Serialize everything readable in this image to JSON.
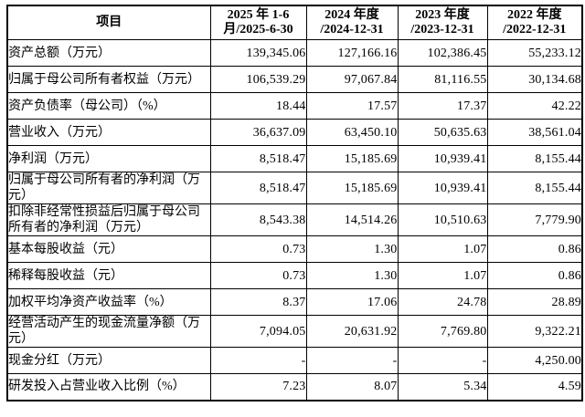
{
  "page": {
    "background_color": "#ffffff",
    "border_color": "#000000",
    "text_color": "#000000"
  },
  "table": {
    "header": {
      "item_label": "项目",
      "periods": [
        {
          "line1": "2025 年 1-6",
          "line2": "月/2025-6-30"
        },
        {
          "line1": "2024 年度",
          "line2": "/2024-12-31"
        },
        {
          "line1": "2023 年度",
          "line2": "/2023-12-31"
        },
        {
          "line1": "2022 年度",
          "line2": "/2022-12-31"
        }
      ]
    },
    "rows": [
      {
        "label": "资产总额（万元）",
        "values": [
          "139,345.06",
          "127,166.16",
          "102,386.45",
          "55,233.12"
        ]
      },
      {
        "label": "归属于母公司所有者权益（万元）",
        "values": [
          "106,539.29",
          "97,067.84",
          "81,116.55",
          "30,134.68"
        ]
      },
      {
        "label": "资产负债率（母公司）（%）",
        "values": [
          "18.44",
          "17.57",
          "17.37",
          "42.22"
        ]
      },
      {
        "label": "营业收入（万元）",
        "values": [
          "36,637.09",
          "63,450.10",
          "50,635.63",
          "38,561.04"
        ]
      },
      {
        "label": "净利润（万元）",
        "values": [
          "8,518.47",
          "15,185.69",
          "10,939.41",
          "8,155.44"
        ]
      },
      {
        "label": "归属于母公司所有者的净利润（万元）",
        "values": [
          "8,518.47",
          "15,185.69",
          "10,939.41",
          "8,155.44"
        ]
      },
      {
        "label": "扣除非经常性损益后归属于母公司所有者的净利润（万元）",
        "values": [
          "8,543.38",
          "14,514.26",
          "10,510.63",
          "7,779.90"
        ]
      },
      {
        "label": "基本每股收益（元）",
        "values": [
          "0.73",
          "1.30",
          "1.07",
          "0.86"
        ]
      },
      {
        "label": "稀释每股收益（元）",
        "values": [
          "0.73",
          "1.30",
          "1.07",
          "0.86"
        ]
      },
      {
        "label": "加权平均净资产收益率（%）",
        "values": [
          "8.37",
          "17.06",
          "24.78",
          "28.89"
        ]
      },
      {
        "label": "经营活动产生的现金流量净额（万元）",
        "values": [
          "7,094.05",
          "20,631.92",
          "7,769.80",
          "9,322.21"
        ]
      },
      {
        "label": "现金分红（万元）",
        "values": [
          "-",
          "-",
          "-",
          "4,250.00"
        ]
      },
      {
        "label": "研发投入占营业收入比例（%）",
        "values": [
          "7.23",
          "8.07",
          "5.34",
          "4.59"
        ]
      }
    ]
  }
}
